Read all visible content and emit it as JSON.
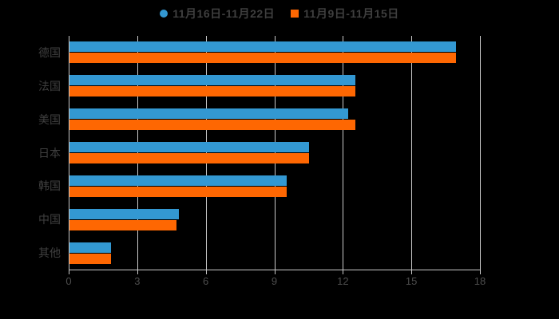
{
  "chart_data": {
    "type": "bar",
    "orientation": "horizontal",
    "title": "",
    "xlabel": "",
    "ylabel": "",
    "background": "#000000",
    "grid": true,
    "legend_position": "top",
    "axis_color": "#c9c9c9",
    "label_color": "#3f3f3f",
    "tick_label_color": "#4d4d4d",
    "xlim": [
      0,
      18
    ],
    "xticks": [
      "0",
      "3",
      "6",
      "9",
      "12",
      "15",
      "18"
    ],
    "categories": [
      "德国",
      "法国",
      "美国",
      "日本",
      "韩国",
      "中国",
      "其他"
    ],
    "series": [
      {
        "name": "11月16日-11月22日",
        "color": "#3398d2",
        "marker": "circle",
        "values": [
          16.9,
          12.5,
          12.2,
          10.5,
          9.5,
          4.8,
          1.8
        ]
      },
      {
        "name": "11月9日-11月15日",
        "color": "#fe6702",
        "marker": "square",
        "values": [
          16.9,
          12.5,
          12.5,
          10.5,
          9.5,
          4.7,
          1.8
        ]
      }
    ]
  }
}
